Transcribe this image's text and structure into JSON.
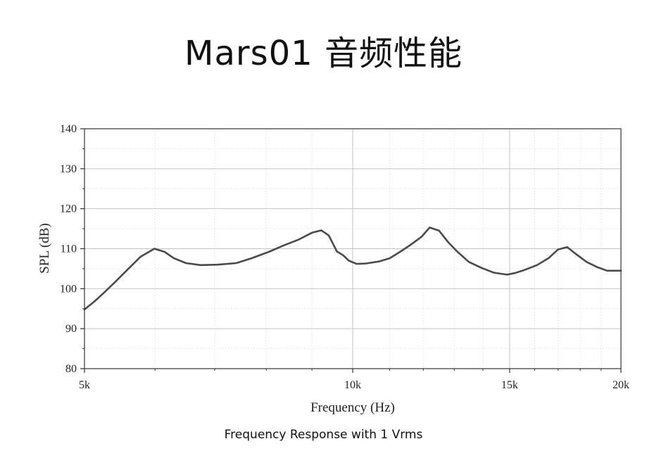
{
  "slide": {
    "title": "Mars01 音频性能",
    "caption": "Frequency Response with 1 Vrms"
  },
  "colors": {
    "line": "#4a4a4a",
    "major_grid": "#c4c4c4",
    "minor_grid": "#e2e2e2",
    "axis": "#333333"
  },
  "chart_data": {
    "type": "line",
    "title": "",
    "xlabel": "Frequency (Hz)",
    "ylabel": "SPL (dB)",
    "xscale": "log",
    "xlim": [
      5000,
      20000
    ],
    "ylim": [
      80,
      140
    ],
    "grid": true,
    "xticks": [
      {
        "value": 5000,
        "label": "5k"
      },
      {
        "value": 10000,
        "label": "10k"
      },
      {
        "value": 15000,
        "label": "15k"
      },
      {
        "value": 20000,
        "label": "20k"
      }
    ],
    "xminor": [
      6000,
      7000,
      8000,
      9000,
      11000,
      12000,
      13000,
      14000,
      16000,
      17000,
      18000,
      19000
    ],
    "yticks": [
      80,
      90,
      100,
      110,
      120,
      130,
      140
    ],
    "yminor": [
      85,
      95,
      105,
      115,
      125,
      135
    ],
    "series": [
      {
        "x": [
          5000,
          5130,
          5270,
          5420,
          5590,
          5780,
          5990,
          6150,
          6300,
          6500,
          6750,
          7050,
          7400,
          7700,
          8050,
          8380,
          8700,
          9000,
          9220,
          9400,
          9600,
          9750,
          9900,
          10100,
          10350,
          10700,
          11000,
          11300,
          11600,
          11950,
          12200,
          12500,
          12800,
          13100,
          13500,
          13950,
          14400,
          14900,
          15200,
          15600,
          16100,
          16600,
          17000,
          17400,
          17800,
          18300,
          18800,
          19300,
          20000
        ],
        "y": [
          94.8,
          96.8,
          99.2,
          101.8,
          104.8,
          108.0,
          110.0,
          109.2,
          107.6,
          106.4,
          105.9,
          106.0,
          106.4,
          107.6,
          109.2,
          110.9,
          112.3,
          114.0,
          114.6,
          113.3,
          109.3,
          108.4,
          107.0,
          106.2,
          106.3,
          106.8,
          107.6,
          109.2,
          110.9,
          113.0,
          115.3,
          114.5,
          111.6,
          109.3,
          106.7,
          105.2,
          104.0,
          103.5,
          103.9,
          104.7,
          105.9,
          107.7,
          109.8,
          110.4,
          108.7,
          106.7,
          105.4,
          104.5,
          104.5
        ]
      }
    ]
  }
}
